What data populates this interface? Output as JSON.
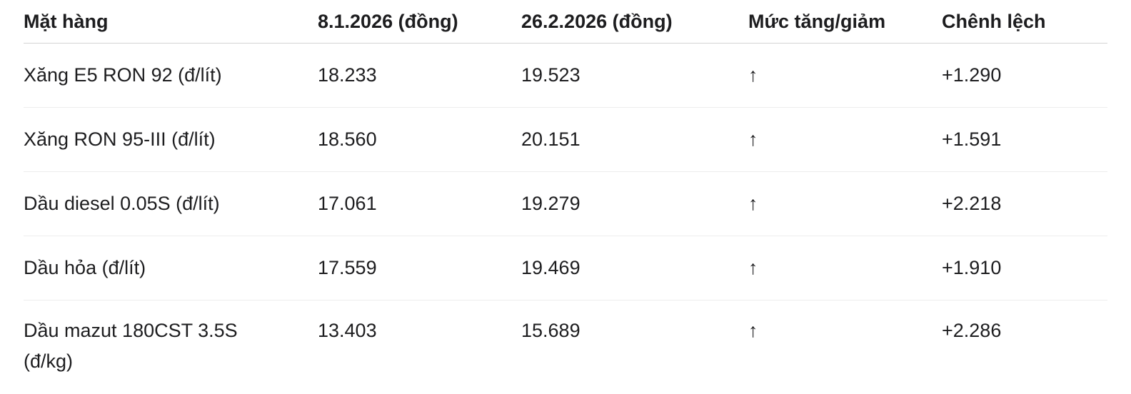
{
  "chart_data": {
    "type": "table",
    "title": "",
    "columns": [
      "Mặt hàng",
      "8.1.2026 (đồng)",
      "26.2.2026 (đồng)",
      "Mức tăng/giảm",
      "Chênh lệch"
    ],
    "rows": [
      {
        "item": "Xăng E5 RON 92 (đ/lít)",
        "price_jan": "18.233",
        "price_feb": "19.523",
        "trend": "↑",
        "diff": "+1.290"
      },
      {
        "item": "Xăng RON 95-III (đ/lít)",
        "price_jan": "18.560",
        "price_feb": "20.151",
        "trend": "↑",
        "diff": "+1.591"
      },
      {
        "item": "Dầu diesel 0.05S (đ/lít)",
        "price_jan": "17.061",
        "price_feb": "19.279",
        "trend": "↑",
        "diff": "+2.218"
      },
      {
        "item": "Dầu hỏa (đ/lít)",
        "price_jan": "17.559",
        "price_feb": "19.469",
        "trend": "↑",
        "diff": "+1.910"
      },
      {
        "item": "Dầu mazut 180CST 3.5S (đ/kg)",
        "price_jan": "13.403",
        "price_feb": "15.689",
        "trend": "↑",
        "diff": "+2.286"
      }
    ],
    "trend_meaning": "up",
    "layout": {
      "grid": "horizontal row dividers only",
      "header_divider_color": "#d4d4d4",
      "row_divider_color": "#ededed"
    }
  },
  "colors": {
    "text": "#1d1d1f",
    "background": "#ffffff",
    "header_divider": "#d4d4d4",
    "row_divider": "#ededed"
  }
}
